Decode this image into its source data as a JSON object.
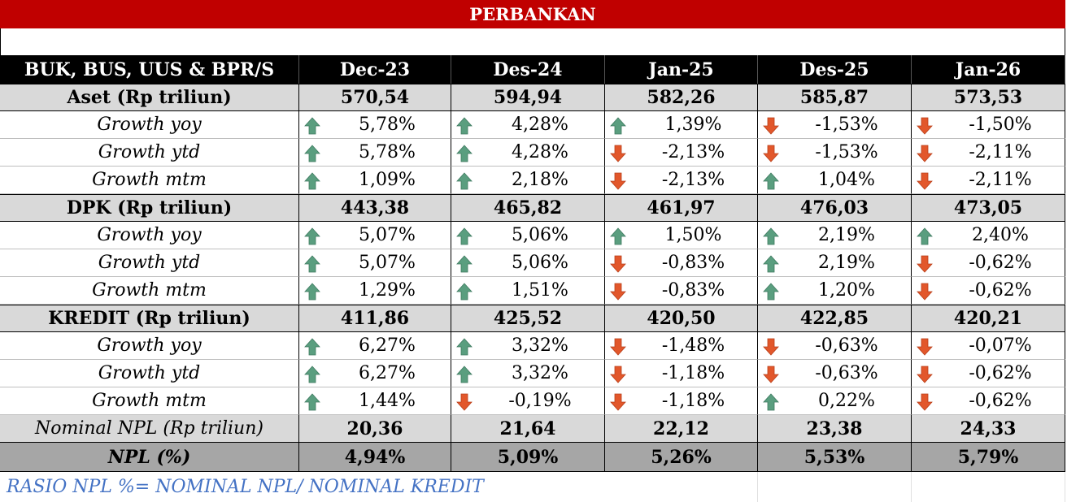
{
  "title": "PERBANKAN",
  "header": [
    "BUK, BUS, UUS & BPR/S",
    "Dec-23",
    "Des-24",
    "Jan-25",
    "Des-25",
    "Jan-26"
  ],
  "sections": [
    {
      "label": "Aset (Rp triliun)",
      "values": [
        "570,54",
        "594,94",
        "582,26",
        "585,87",
        "573,53"
      ],
      "rows": [
        {
          "label": "Growth yoy",
          "values": [
            "5,78%",
            "4,28%",
            "1,39%",
            "-1,53%",
            "-1,50%"
          ]
        },
        {
          "label": "Growth ytd",
          "values": [
            "5,78%",
            "4,28%",
            "-2,13%",
            "-1,53%",
            "-2,11%"
          ]
        },
        {
          "label": "Growth mtm",
          "values": [
            "1,09%",
            "2,18%",
            "-2,13%",
            "1,04%",
            "-2,11%"
          ]
        }
      ]
    },
    {
      "label": "DPK (Rp triliun)",
      "values": [
        "443,38",
        "465,82",
        "461,97",
        "476,03",
        "473,05"
      ],
      "rows": [
        {
          "label": "Growth yoy",
          "values": [
            "5,07%",
            "5,06%",
            "1,50%",
            "2,19%",
            "2,40%"
          ]
        },
        {
          "label": "Growth ytd",
          "values": [
            "5,07%",
            "5,06%",
            "-0,83%",
            "2,19%",
            "-0,62%"
          ]
        },
        {
          "label": "Growth mtm",
          "values": [
            "1,29%",
            "1,51%",
            "-0,83%",
            "1,20%",
            "-0,62%"
          ]
        }
      ]
    },
    {
      "label": "KREDIT  (Rp triliun)",
      "values": [
        "411,86",
        "425,52",
        "420,50",
        "422,85",
        "420,21"
      ],
      "rows": [
        {
          "label": "Growth yoy",
          "values": [
            "6,27%",
            "3,32%",
            "-1,48%",
            "-0,63%",
            "-0,07%"
          ]
        },
        {
          "label": "Growth ytd",
          "values": [
            "6,27%",
            "3,32%",
            "-1,18%",
            "-0,63%",
            "-0,62%"
          ]
        },
        {
          "label": "Growth mtm",
          "values": [
            "1,44%",
            "-0,19%",
            "-1,18%",
            "0,22%",
            "-0,62%"
          ]
        }
      ]
    }
  ],
  "npl_nominal": {
    "label": "Nominal NPL (Rp triliun)",
    "values": [
      "20,36",
      "21,64",
      "22,12",
      "23,38",
      "24,33"
    ]
  },
  "npl": {
    "label": "NPL (%)",
    "values": [
      "4,94%",
      "5,09%",
      "5,26%",
      "5,53%",
      "5,79%"
    ]
  },
  "footnote": "RASIO NPL %= NOMINAL NPL/ NOMINAL KREDIT"
}
